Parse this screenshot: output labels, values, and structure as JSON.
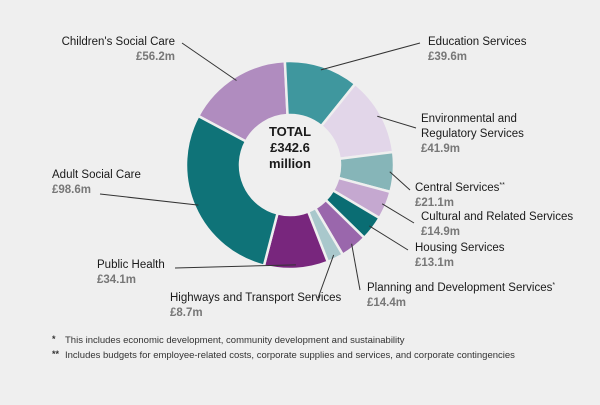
{
  "chart_data": {
    "type": "pie",
    "center_label": [
      "TOTAL",
      "£342.6",
      "million"
    ],
    "slices": [
      {
        "name": "Children's Social Care",
        "value_label": "£56.2m",
        "value": 56.2,
        "color": "#b08cbf"
      },
      {
        "name": "Education Services",
        "value_label": "£39.6m",
        "value": 39.6,
        "color": "#3f979e"
      },
      {
        "name": "Environmental and Regulatory Services",
        "value_label": "£41.9m",
        "value": 41.9,
        "color": "#e2d6e9"
      },
      {
        "name": "Central Services",
        "name_mark": "**",
        "value_label": "£21.1m",
        "value": 21.1,
        "color": "#86b5b8"
      },
      {
        "name": "Cultural and Related Services",
        "value_label": "£14.9m",
        "value": 14.9,
        "color": "#c5a8d0"
      },
      {
        "name": "Housing Services",
        "value_label": "£13.1m",
        "value": 13.1,
        "color": "#0a6d73"
      },
      {
        "name": "Planning and Development Services",
        "name_mark": "*",
        "value_label": "£14.4m",
        "value": 14.4,
        "color": "#9a67ac"
      },
      {
        "name": "Highways and Transport Services",
        "value_label": "£8.7m",
        "value": 8.7,
        "color": "#a9c8cc"
      },
      {
        "name": "Public Health",
        "value_label": "£34.1m",
        "value": 34.1,
        "color": "#78267d"
      },
      {
        "name": "Adult Social Care",
        "value_label": "£98.6m",
        "value": 98.6,
        "color": "#0f7378"
      }
    ]
  },
  "footnotes": [
    {
      "mark": "*",
      "text": "This includes economic development, community development and sustainability"
    },
    {
      "mark": "**",
      "text": "Includes budgets for employee-related costs, corporate supplies and services, and corporate contingencies"
    }
  ],
  "colors": {
    "background": "#efefef",
    "leader": "#333333"
  }
}
